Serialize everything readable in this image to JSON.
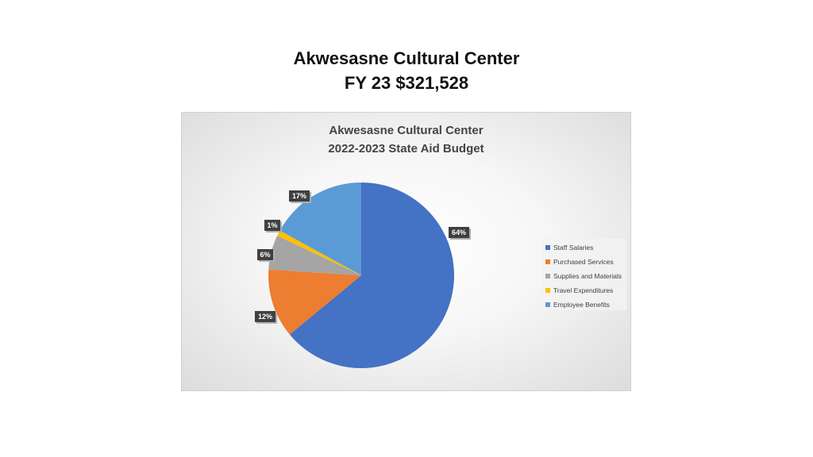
{
  "slide": {
    "title_line1": "Akwesasne Cultural Center",
    "title_line2": "FY 23 $321,528"
  },
  "chart_data": {
    "type": "pie",
    "title_line1": "Akwesasne Cultural Center",
    "title_line2": "2022-2023 State Aid Budget",
    "legend_position": "right",
    "categories": [
      "Staff Salaries",
      "Purchased Services",
      "Supplies and Materials",
      "Travel Expenditures",
      "Employee Benefits"
    ],
    "values": [
      64,
      12,
      6,
      1,
      17
    ],
    "labels": [
      "64%",
      "12%",
      "6%",
      "1%",
      "17%"
    ],
    "colors": [
      "#4472c4",
      "#ed7d31",
      "#a5a5a5",
      "#ffc000",
      "#5b9bd5"
    ]
  }
}
